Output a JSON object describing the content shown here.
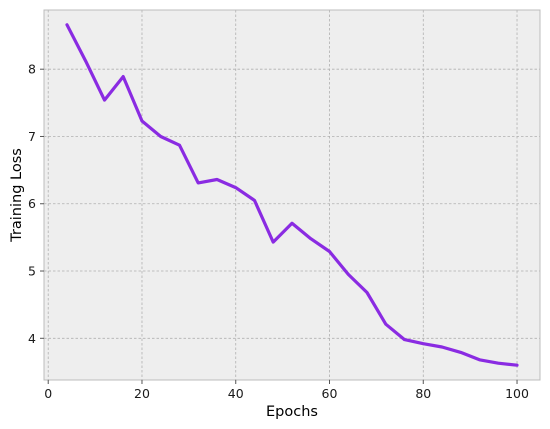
{
  "chart_data": {
    "type": "line",
    "xlabel": "Epochs",
    "ylabel": "Training Loss",
    "xlim": [
      -0.9,
      104.9
    ],
    "ylim": [
      3.38,
      8.88
    ],
    "xticks": [
      0,
      20,
      40,
      60,
      80,
      100
    ],
    "yticks": [
      4,
      5,
      6,
      7,
      8
    ],
    "grid": true,
    "line_color": "#8a2be2",
    "background_color": "#eeeeee",
    "series": [
      {
        "x": [
          4,
          8,
          12,
          16,
          20,
          24,
          28,
          32,
          36,
          40,
          44,
          48,
          52,
          56,
          60,
          64,
          68,
          72,
          76,
          80,
          84,
          88,
          92,
          96,
          100
        ],
        "values": [
          8.66,
          8.12,
          7.54,
          7.89,
          7.23,
          7.0,
          6.87,
          6.31,
          6.36,
          6.24,
          6.05,
          5.43,
          5.71,
          5.48,
          5.29,
          4.95,
          4.68,
          4.21,
          3.98,
          3.92,
          3.87,
          3.79,
          3.68,
          3.63,
          3.6
        ]
      }
    ]
  }
}
